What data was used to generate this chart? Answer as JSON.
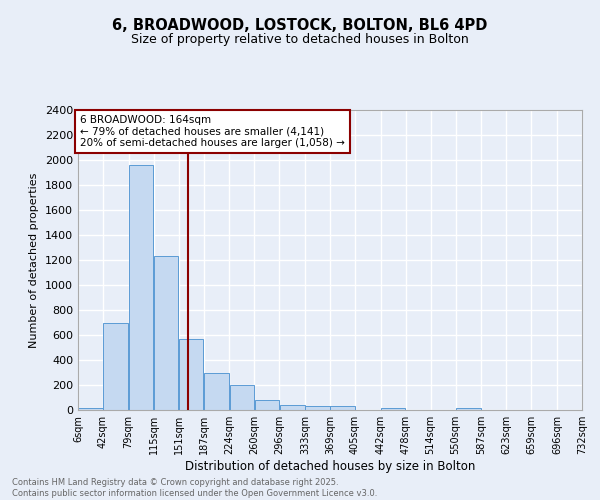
{
  "title_line1": "6, BROADWOOD, LOSTOCK, BOLTON, BL6 4PD",
  "title_line2": "Size of property relative to detached houses in Bolton",
  "xlabel": "Distribution of detached houses by size in Bolton",
  "ylabel": "Number of detached properties",
  "bar_edges": [
    6,
    42,
    79,
    115,
    151,
    187,
    224,
    260,
    296,
    333,
    369,
    405,
    442,
    478,
    514,
    550,
    587,
    623,
    659,
    696,
    732
  ],
  "bar_heights": [
    15,
    700,
    1960,
    1230,
    570,
    300,
    200,
    80,
    40,
    35,
    30,
    0,
    20,
    0,
    0,
    15,
    0,
    0,
    0,
    0
  ],
  "bar_color": "#C5D9F1",
  "bar_edgecolor": "#5B9BD5",
  "vline_x": 164,
  "vline_color": "#8B0000",
  "annotation_text": "6 BROADWOOD: 164sqm\n← 79% of detached houses are smaller (4,141)\n20% of semi-detached houses are larger (1,058) →",
  "annotation_box_color": "#ffffff",
  "annotation_border_color": "#8B0000",
  "ylim": [
    0,
    2400
  ],
  "yticks": [
    0,
    200,
    400,
    600,
    800,
    1000,
    1200,
    1400,
    1600,
    1800,
    2000,
    2200,
    2400
  ],
  "bg_color": "#E8EEF8",
  "grid_color": "#ffffff",
  "footer_text": "Contains HM Land Registry data © Crown copyright and database right 2025.\nContains public sector information licensed under the Open Government Licence v3.0.",
  "tick_labels": [
    "6sqm",
    "42sqm",
    "79sqm",
    "115sqm",
    "151sqm",
    "187sqm",
    "224sqm",
    "260sqm",
    "296sqm",
    "333sqm",
    "369sqm",
    "405sqm",
    "442sqm",
    "478sqm",
    "514sqm",
    "550sqm",
    "587sqm",
    "623sqm",
    "659sqm",
    "696sqm",
    "732sqm"
  ]
}
